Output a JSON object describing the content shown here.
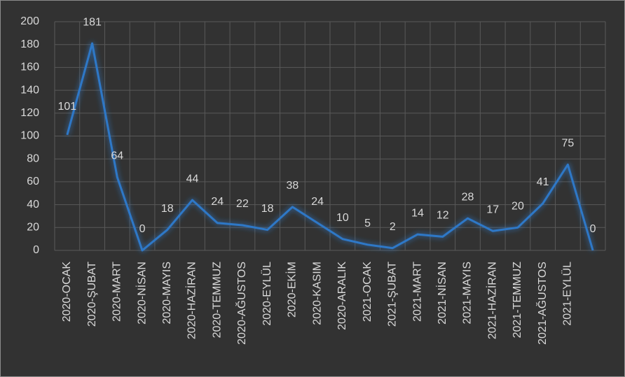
{
  "chart_data": {
    "type": "line",
    "categories": [
      "2020-OCAK",
      "2020-ŞUBAT",
      "2020-MART",
      "2020-NİSAN",
      "2020-MAYIS",
      "2020-HAZİRAN",
      "2020-TEMMUZ",
      "2020-AĞUSTOS",
      "2020-EYLÜL",
      "2020-EKİM",
      "2020-KASIM",
      "2020-ARALIK",
      "2021-OCAK",
      "2021-ŞUBAT",
      "2021-MART",
      "2021-NİSAN",
      "2021-MAYIS",
      "2021-HAZİRAN",
      "2021-TEMMUZ",
      "2021-AĞUSTOS",
      "2021-EYLÜL",
      null
    ],
    "values": [
      101,
      181,
      64,
      0,
      18,
      44,
      24,
      22,
      18,
      38,
      24,
      10,
      5,
      2,
      14,
      12,
      28,
      17,
      20,
      41,
      75,
      0
    ],
    "color": "#2e78c7",
    "ylim": [
      0,
      200
    ],
    "yticks": [
      0,
      20,
      40,
      60,
      80,
      100,
      120,
      140,
      160,
      180,
      200
    ],
    "grid": true
  }
}
